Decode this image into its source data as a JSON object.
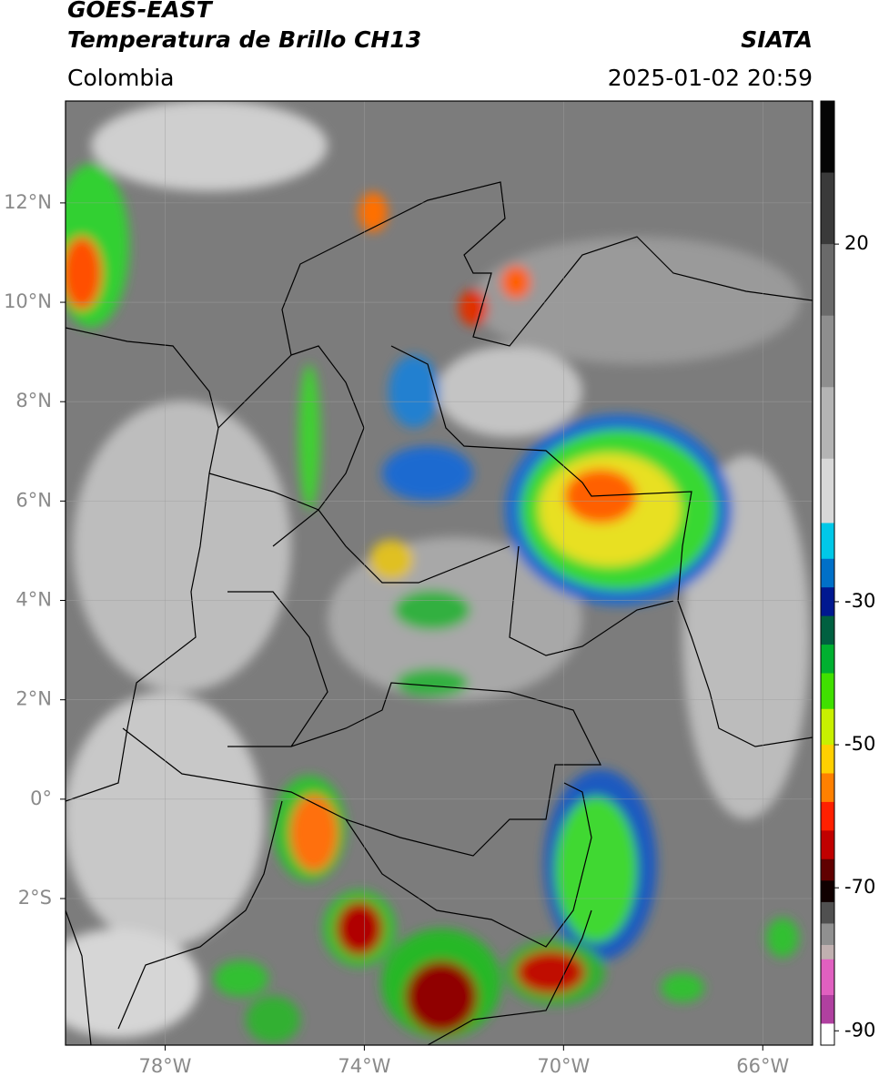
{
  "header": {
    "satellite": "GOES-EAST",
    "product": "Temperatura de Brillo CH13",
    "organization": "SIATA",
    "region": "Colombia",
    "datetime": "2025-01-02 20:59"
  },
  "map": {
    "lonlim": [
      -80,
      -65
    ],
    "latlim": [
      -4.95,
      14.05
    ],
    "lon_ticks": [
      {
        "value": -78,
        "label": "78°W"
      },
      {
        "value": -74,
        "label": "74°W"
      },
      {
        "value": -70,
        "label": "70°W"
      },
      {
        "value": -66,
        "label": "66°W"
      }
    ],
    "lat_ticks": [
      {
        "value": 12,
        "label": "12°N"
      },
      {
        "value": 10,
        "label": "10°N"
      },
      {
        "value": 8,
        "label": "8°N"
      },
      {
        "value": 6,
        "label": "6°N"
      },
      {
        "value": 4,
        "label": "4°N"
      },
      {
        "value": 2,
        "label": "2°N"
      },
      {
        "value": 0,
        "label": "0°"
      },
      {
        "value": -2,
        "label": "2°S"
      }
    ],
    "grid": true
  },
  "colorbar": {
    "lim": [
      -92,
      40
    ],
    "ticks": [
      20,
      -30,
      -50,
      -70,
      -90
    ],
    "colormap": [
      {
        "value": 40,
        "color": "#050505"
      },
      {
        "value": 30,
        "color": "#3a3a3a"
      },
      {
        "value": 20,
        "color": "#6a6a6a"
      },
      {
        "value": 10,
        "color": "#8e8e8e"
      },
      {
        "value": 0,
        "color": "#b4b4b4"
      },
      {
        "value": -10,
        "color": "#d8d8d8"
      },
      {
        "value": -19,
        "color": "#00c8e8"
      },
      {
        "value": -24,
        "color": "#0070c8"
      },
      {
        "value": -28,
        "color": "#001890"
      },
      {
        "value": -32,
        "color": "#006040"
      },
      {
        "value": -36,
        "color": "#00b030"
      },
      {
        "value": -40,
        "color": "#40e000"
      },
      {
        "value": -45,
        "color": "#c8f000"
      },
      {
        "value": -50,
        "color": "#ffd000"
      },
      {
        "value": -54,
        "color": "#ff8000"
      },
      {
        "value": -58,
        "color": "#ff2000"
      },
      {
        "value": -62,
        "color": "#c00000"
      },
      {
        "value": -66,
        "color": "#600000"
      },
      {
        "value": -69,
        "color": "#100000"
      },
      {
        "value": -72,
        "color": "#505050"
      },
      {
        "value": -75,
        "color": "#909090"
      },
      {
        "value": -78,
        "color": "#c0b0b0"
      },
      {
        "value": -80,
        "color": "#e060c0"
      },
      {
        "value": -85,
        "color": "#b040a0"
      },
      {
        "value": -89,
        "color": "#ffffff"
      },
      {
        "value": -92,
        "color": "#ffffff"
      }
    ]
  }
}
